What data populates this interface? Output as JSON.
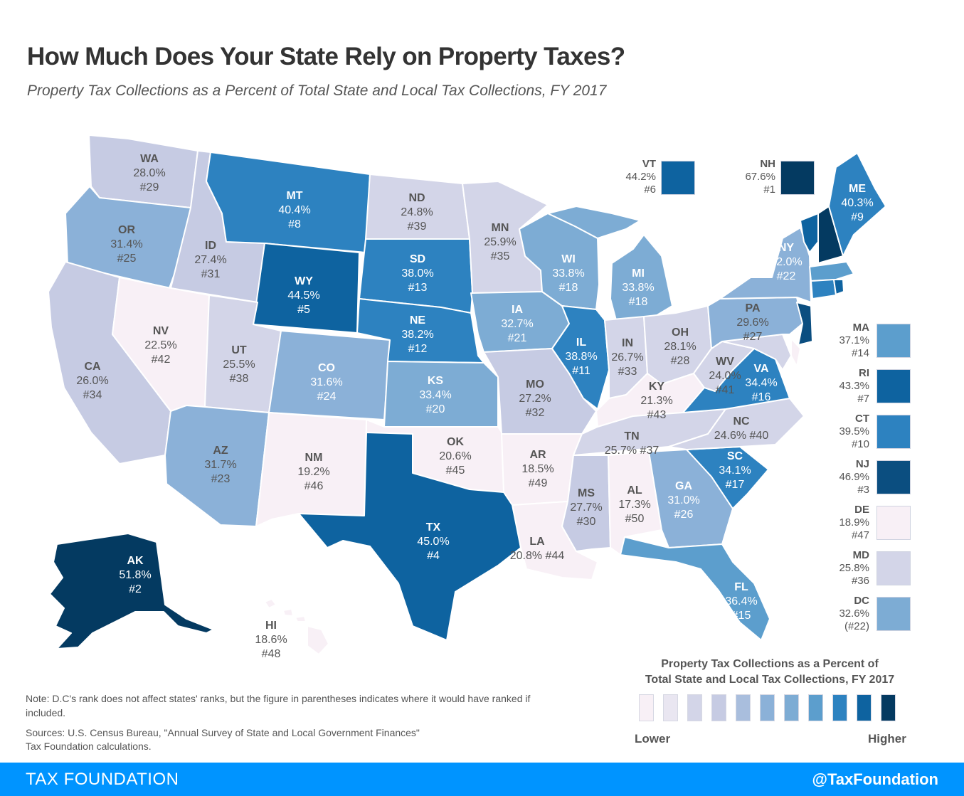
{
  "title": "How Much Does Your State Rely on Property Taxes?",
  "subtitle": "Property Tax Collections as a Percent of Total State and Local Tax Collections, FY 2017",
  "colors": {
    "scale": [
      "#f8f0f6",
      "#e9e6f1",
      "#d3d5e8",
      "#c6cbe3",
      "#a9bedd",
      "#8bb1d8",
      "#7dacd4",
      "#5c9ecd",
      "#2d82c0",
      "#0e63a0",
      "#043a61"
    ]
  },
  "states": [
    {
      "abbr": "WA",
      "value": "28.0%",
      "rank": "#29"
    },
    {
      "abbr": "OR",
      "value": "31.4%",
      "rank": "#25"
    },
    {
      "abbr": "CA",
      "value": "26.0%",
      "rank": "#34"
    },
    {
      "abbr": "ID",
      "value": "27.4%",
      "rank": "#31"
    },
    {
      "abbr": "NV",
      "value": "22.5%",
      "rank": "#42"
    },
    {
      "abbr": "MT",
      "value": "40.4%",
      "rank": "#8"
    },
    {
      "abbr": "WY",
      "value": "44.5%",
      "rank": "#5"
    },
    {
      "abbr": "UT",
      "value": "25.5%",
      "rank": "#38"
    },
    {
      "abbr": "AZ",
      "value": "31.7%",
      "rank": "#23"
    },
    {
      "abbr": "CO",
      "value": "31.6%",
      "rank": "#24"
    },
    {
      "abbr": "NM",
      "value": "19.2%",
      "rank": "#46"
    },
    {
      "abbr": "ND",
      "value": "24.8%",
      "rank": "#39"
    },
    {
      "abbr": "SD",
      "value": "38.0%",
      "rank": "#13"
    },
    {
      "abbr": "NE",
      "value": "38.2%",
      "rank": "#12"
    },
    {
      "abbr": "KS",
      "value": "33.4%",
      "rank": "#20"
    },
    {
      "abbr": "OK",
      "value": "20.6%",
      "rank": "#45"
    },
    {
      "abbr": "TX",
      "value": "45.0%",
      "rank": "#4"
    },
    {
      "abbr": "MN",
      "value": "25.9%",
      "rank": "#35"
    },
    {
      "abbr": "IA",
      "value": "32.7%",
      "rank": "#21"
    },
    {
      "abbr": "MO",
      "value": "27.2%",
      "rank": "#32"
    },
    {
      "abbr": "AR",
      "value": "18.5%",
      "rank": "#49"
    },
    {
      "abbr": "LA",
      "value": "20.8%",
      "rank": "#44"
    },
    {
      "abbr": "WI",
      "value": "33.8%",
      "rank": "#18"
    },
    {
      "abbr": "IL",
      "value": "38.8%",
      "rank": "#11"
    },
    {
      "abbr": "MI",
      "value": "33.8%",
      "rank": "#18"
    },
    {
      "abbr": "IN",
      "value": "26.7%",
      "rank": "#33"
    },
    {
      "abbr": "OH",
      "value": "28.1%",
      "rank": "#28"
    },
    {
      "abbr": "KY",
      "value": "21.3%",
      "rank": "#43"
    },
    {
      "abbr": "TN",
      "value": "25.7%",
      "rank": "#37"
    },
    {
      "abbr": "MS",
      "value": "27.7%",
      "rank": "#30"
    },
    {
      "abbr": "AL",
      "value": "17.3%",
      "rank": "#50"
    },
    {
      "abbr": "GA",
      "value": "31.0%",
      "rank": "#26"
    },
    {
      "abbr": "FL",
      "value": "36.4%",
      "rank": "#15"
    },
    {
      "abbr": "SC",
      "value": "34.1%",
      "rank": "#17"
    },
    {
      "abbr": "NC",
      "value": "24.6%",
      "rank": "#40"
    },
    {
      "abbr": "VA",
      "value": "34.4%",
      "rank": "#16"
    },
    {
      "abbr": "WV",
      "value": "24.0%",
      "rank": "#41"
    },
    {
      "abbr": "PA",
      "value": "29.6%",
      "rank": "#27"
    },
    {
      "abbr": "NY",
      "value": "32.0%",
      "rank": "#22"
    },
    {
      "abbr": "ME",
      "value": "40.3%",
      "rank": "#9"
    },
    {
      "abbr": "AK",
      "value": "51.8%",
      "rank": "#2"
    },
    {
      "abbr": "HI",
      "value": "18.6%",
      "rank": "#48"
    }
  ],
  "top_insets": [
    {
      "abbr": "VT",
      "value": "44.2%",
      "rank": "#6",
      "color": "#0e63a0"
    },
    {
      "abbr": "NH",
      "value": "67.6%",
      "rank": "#1",
      "color": "#043a61"
    }
  ],
  "side_insets": [
    {
      "abbr": "MA",
      "value": "37.1%",
      "rank": "#14",
      "color": "#5c9ecd"
    },
    {
      "abbr": "RI",
      "value": "43.3%",
      "rank": "#7",
      "color": "#0e63a0"
    },
    {
      "abbr": "CT",
      "value": "39.5%",
      "rank": "#10",
      "color": "#2d82c0"
    },
    {
      "abbr": "NJ",
      "value": "46.9%",
      "rank": "#3",
      "color": "#0b4e80"
    },
    {
      "abbr": "DE",
      "value": "18.9%",
      "rank": "#47",
      "color": "#f8f0f6"
    },
    {
      "abbr": "MD",
      "value": "25.8%",
      "rank": "#36",
      "color": "#d3d5e8"
    },
    {
      "abbr": "DC",
      "value": "32.6%",
      "rank": "(#22)",
      "color": "#7dacd4"
    }
  ],
  "legend": {
    "title_line1": "Property Tax Collections as a Percent of",
    "title_line2": "Total State and Local Tax Collections, FY 2017",
    "low_label": "Lower",
    "high_label": "Higher"
  },
  "note": "Note: D.C's rank does not affect states' ranks, but the figure in parentheses indicates where it would have ranked if included.",
  "sources_line1": "Sources: U.S. Census Bureau, \"Annual Survey of State and Local Government Finances\"",
  "sources_line2": "Tax Foundation calculations.",
  "footer": {
    "left": "TAX FOUNDATION",
    "right": "@TaxFoundation"
  }
}
